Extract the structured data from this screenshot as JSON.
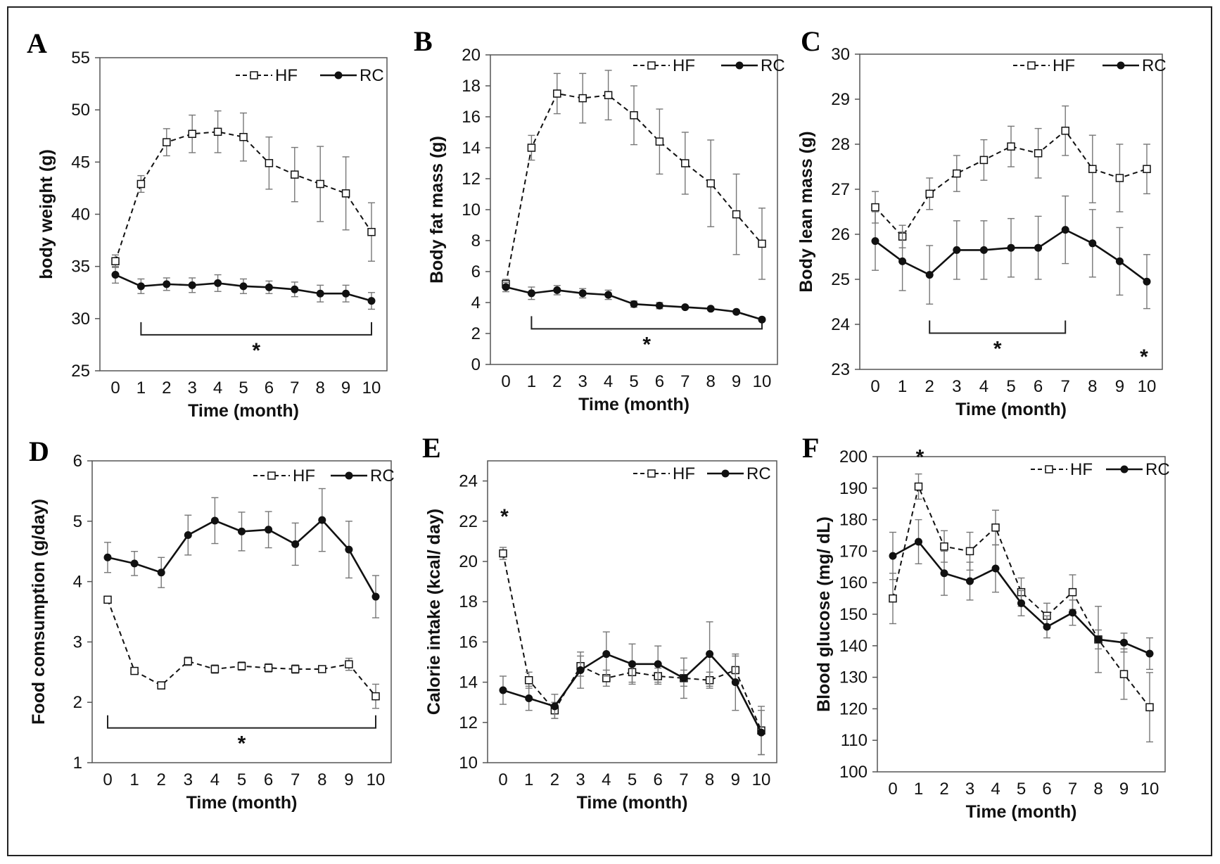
{
  "figure": {
    "panels": [
      {
        "letter": "A",
        "ylabel": "body weight (g)",
        "xlabel": "Time (month)",
        "legend": [
          "HF",
          "RC"
        ]
      },
      {
        "letter": "B",
        "ylabel": "Body fat mass (g)",
        "xlabel": "Time (month)",
        "legend": [
          "HF",
          "RC"
        ]
      },
      {
        "letter": "C",
        "ylabel": "Body lean mass (g)",
        "xlabel": "Time (month)",
        "legend": [
          "HF",
          "RC"
        ]
      },
      {
        "letter": "D",
        "ylabel": "Food comsumption (g/day)",
        "xlabel": "Time (month)",
        "legend": [
          "HF",
          "RC"
        ]
      },
      {
        "letter": "E",
        "ylabel": "Calorie intake (kcal/ day)",
        "xlabel": "Time (month)",
        "legend": [
          "HF",
          "RC"
        ]
      },
      {
        "letter": "F",
        "ylabel": "Blood glucose (mg/ dL)",
        "xlabel": "Time (month)",
        "legend": [
          "HF",
          "RC"
        ]
      }
    ]
  },
  "chart_data": [
    {
      "type": "line",
      "panel": "A",
      "xlabel": "Time (month)",
      "ylabel": "body weight (g)",
      "x": [
        0,
        1,
        2,
        3,
        4,
        5,
        6,
        7,
        8,
        9,
        10
      ],
      "xticks": [
        "0",
        "1",
        "2",
        "3",
        "4",
        "5",
        "6",
        "7",
        "8",
        "9",
        "10"
      ],
      "ylim": [
        25,
        55
      ],
      "yticks": [
        "25",
        "30",
        "35",
        "40",
        "45",
        "50",
        "55"
      ],
      "legend_position": "top-right",
      "grid": false,
      "series": [
        {
          "name": "HF",
          "style": "dashed",
          "marker": "open-square",
          "values": [
            35.5,
            42.9,
            46.9,
            47.7,
            47.9,
            47.4,
            44.9,
            43.8,
            42.9,
            42.0,
            38.3
          ],
          "errors": [
            0.6,
            0.8,
            1.3,
            1.8,
            2.0,
            2.3,
            2.5,
            2.6,
            3.6,
            3.5,
            2.8
          ]
        },
        {
          "name": "RC",
          "style": "solid",
          "marker": "filled-circle",
          "values": [
            34.2,
            33.1,
            33.3,
            33.2,
            33.4,
            33.1,
            33.0,
            32.8,
            32.4,
            32.4,
            31.7
          ],
          "errors": [
            0.8,
            0.7,
            0.6,
            0.7,
            0.8,
            0.7,
            0.6,
            0.7,
            0.8,
            0.8,
            0.8
          ]
        }
      ],
      "significance": [
        {
          "from": 1,
          "to": 10,
          "label": "*"
        }
      ]
    },
    {
      "type": "line",
      "panel": "B",
      "xlabel": "Time (month)",
      "ylabel": "Body fat mass (g)",
      "x": [
        0,
        1,
        2,
        3,
        4,
        5,
        6,
        7,
        8,
        9,
        10
      ],
      "xticks": [
        "0",
        "1",
        "2",
        "3",
        "4",
        "5",
        "6",
        "7",
        "8",
        "9",
        "10"
      ],
      "ylim": [
        0,
        20
      ],
      "yticks": [
        "0",
        "2",
        "4",
        "6",
        "8",
        "10",
        "12",
        "14",
        "16",
        "18",
        "20"
      ],
      "legend_position": "top-right",
      "grid": false,
      "series": [
        {
          "name": "HF",
          "style": "dashed",
          "marker": "open-square",
          "values": [
            5.2,
            14.0,
            17.5,
            17.2,
            17.4,
            16.1,
            14.4,
            13.0,
            11.7,
            9.7,
            7.8
          ],
          "errors": [
            0.3,
            0.8,
            1.3,
            1.6,
            1.6,
            1.9,
            2.1,
            2.0,
            2.8,
            2.6,
            2.3
          ]
        },
        {
          "name": "RC",
          "style": "solid",
          "marker": "filled-circle",
          "values": [
            5.0,
            4.6,
            4.8,
            4.6,
            4.5,
            3.9,
            3.8,
            3.7,
            3.6,
            3.4,
            2.9
          ],
          "errors": [
            0.3,
            0.4,
            0.3,
            0.3,
            0.3,
            0.2,
            0.2,
            0.1,
            0.1,
            0.1,
            0.1
          ]
        }
      ],
      "significance": [
        {
          "from": 1,
          "to": 10,
          "label": "*"
        }
      ]
    },
    {
      "type": "line",
      "panel": "C",
      "xlabel": "Time (month)",
      "ylabel": "Body lean mass (g)",
      "x": [
        0,
        1,
        2,
        3,
        4,
        5,
        6,
        7,
        8,
        9,
        10
      ],
      "xticks": [
        "0",
        "1",
        "2",
        "3",
        "4",
        "5",
        "6",
        "7",
        "8",
        "9",
        "10"
      ],
      "ylim": [
        23,
        30
      ],
      "yticks": [
        "23",
        "24",
        "25",
        "26",
        "27",
        "28",
        "29",
        "30"
      ],
      "legend_position": "top-right",
      "grid": false,
      "series": [
        {
          "name": "HF",
          "style": "dashed",
          "marker": "open-square",
          "values": [
            26.6,
            25.95,
            26.9,
            27.35,
            27.65,
            27.95,
            27.8,
            28.3,
            27.45,
            27.25,
            27.45
          ],
          "errors": [
            0.35,
            0.25,
            0.35,
            0.4,
            0.45,
            0.45,
            0.55,
            0.55,
            0.75,
            0.75,
            0.55
          ]
        },
        {
          "name": "RC",
          "style": "solid",
          "marker": "filled-circle",
          "values": [
            25.85,
            25.4,
            25.1,
            25.65,
            25.65,
            25.7,
            25.7,
            26.1,
            25.8,
            25.4,
            24.95
          ],
          "errors": [
            0.65,
            0.65,
            0.65,
            0.65,
            0.65,
            0.65,
            0.7,
            0.75,
            0.75,
            0.75,
            0.6
          ]
        }
      ],
      "significance": [
        {
          "from": 2,
          "to": 7,
          "label": "*"
        },
        {
          "at": 10,
          "label": "*"
        }
      ]
    },
    {
      "type": "line",
      "panel": "D",
      "xlabel": "Time (month)",
      "ylabel": "Food comsumption (g/day)",
      "x": [
        0,
        1,
        2,
        3,
        4,
        5,
        6,
        7,
        8,
        9,
        10
      ],
      "xticks": [
        "0",
        "1",
        "2",
        "3",
        "4",
        "5",
        "6",
        "7",
        "8",
        "9",
        "10"
      ],
      "ylim": [
        1,
        6
      ],
      "yticks": [
        "1",
        "2",
        "3",
        "4",
        "5",
        "6"
      ],
      "legend_position": "top-right",
      "grid": false,
      "series": [
        {
          "name": "HF",
          "style": "dashed",
          "marker": "open-square",
          "values": [
            3.7,
            2.52,
            2.28,
            2.68,
            2.55,
            2.6,
            2.57,
            2.55,
            2.55,
            2.63,
            2.1
          ],
          "errors": [
            0.04,
            0.05,
            0.06,
            0.07,
            0.07,
            0.07,
            0.07,
            0.07,
            0.04,
            0.1,
            0.2
          ]
        },
        {
          "name": "RC",
          "style": "solid",
          "marker": "filled-circle",
          "values": [
            4.4,
            4.3,
            4.15,
            4.77,
            5.01,
            4.83,
            4.86,
            4.62,
            5.02,
            4.53,
            3.75
          ],
          "errors": [
            0.25,
            0.2,
            0.25,
            0.33,
            0.38,
            0.32,
            0.3,
            0.35,
            0.52,
            0.47,
            0.35
          ]
        }
      ],
      "significance": [
        {
          "from": 0,
          "to": 10,
          "label": "*"
        }
      ]
    },
    {
      "type": "line",
      "panel": "E",
      "xlabel": "Time (month)",
      "ylabel": "Calorie intake (kcal/ day)",
      "x": [
        0,
        1,
        2,
        3,
        4,
        5,
        6,
        7,
        8,
        9,
        10
      ],
      "xticks": [
        "0",
        "1",
        "2",
        "3",
        "4",
        "5",
        "6",
        "7",
        "8",
        "9",
        "10"
      ],
      "ylim": [
        10,
        25
      ],
      "yticks": [
        "10",
        "12",
        "14",
        "16",
        "18",
        "20",
        "22",
        "24"
      ],
      "legend_position": "top-right",
      "grid": false,
      "series": [
        {
          "name": "HF",
          "style": "dashed",
          "marker": "open-square",
          "values": [
            20.4,
            14.1,
            12.6,
            14.8,
            14.2,
            14.5,
            14.3,
            14.2,
            14.1,
            14.6,
            11.6
          ],
          "errors": [
            0.3,
            0.4,
            0.4,
            0.5,
            0.4,
            0.5,
            0.4,
            0.4,
            0.4,
            0.7,
            1.2
          ]
        },
        {
          "name": "RC",
          "style": "solid",
          "marker": "filled-circle",
          "values": [
            13.6,
            13.2,
            12.8,
            14.6,
            15.4,
            14.9,
            14.9,
            14.2,
            15.4,
            14.0,
            11.5
          ],
          "errors": [
            0.7,
            0.6,
            0.6,
            0.9,
            1.1,
            1.0,
            0.9,
            1.0,
            1.6,
            1.4,
            1.1
          ]
        }
      ],
      "significance": [
        {
          "at": 0,
          "label": "*"
        }
      ]
    },
    {
      "type": "line",
      "panel": "F",
      "xlabel": "Time (month)",
      "ylabel": "Blood glucose (mg/ dL)",
      "x": [
        0,
        1,
        2,
        3,
        4,
        5,
        6,
        7,
        8,
        9,
        10
      ],
      "xticks": [
        "0",
        "1",
        "2",
        "3",
        "4",
        "5",
        "6",
        "7",
        "8",
        "9",
        "10"
      ],
      "ylim": [
        100,
        200
      ],
      "yticks": [
        "100",
        "110",
        "120",
        "130",
        "140",
        "150",
        "160",
        "170",
        "180",
        "190",
        "200"
      ],
      "legend_position": "top-right",
      "grid": false,
      "series": [
        {
          "name": "HF",
          "style": "dashed",
          "marker": "open-square",
          "values": [
            155,
            190.5,
            171.5,
            170,
            177.5,
            157,
            149.5,
            157,
            142,
            131,
            120.5
          ],
          "errors": [
            8,
            4,
            5,
            6,
            5.5,
            4.5,
            4,
            5.5,
            10.5,
            8,
            11
          ]
        },
        {
          "name": "RC",
          "style": "solid",
          "marker": "filled-circle",
          "values": [
            168.5,
            173,
            163,
            160.5,
            164.5,
            153.5,
            146,
            150.5,
            142,
            141,
            137.5
          ],
          "errors": [
            7.5,
            7,
            7,
            6,
            7.5,
            4,
            3.5,
            4,
            3,
            3,
            5
          ]
        }
      ],
      "significance": [
        {
          "at": 1,
          "label": "*"
        }
      ]
    }
  ]
}
